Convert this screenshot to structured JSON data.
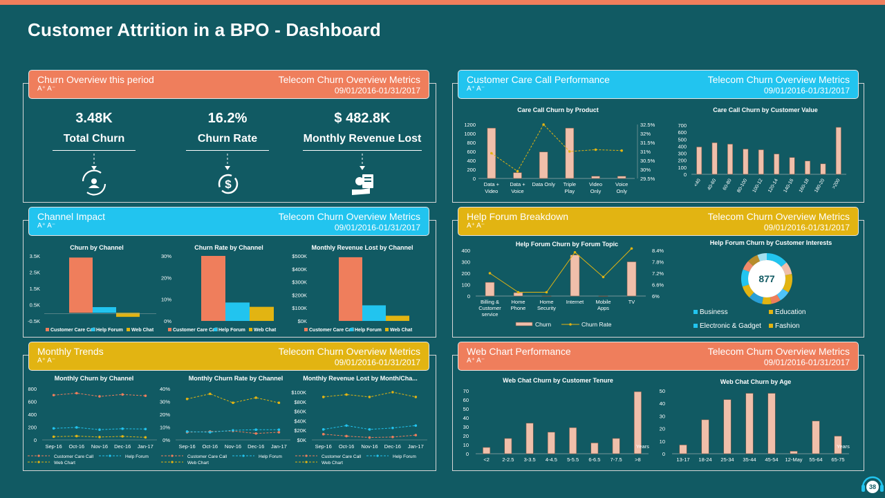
{
  "page": {
    "title": "Customer Attrition in a BPO - Dashboard",
    "number": "38"
  },
  "colors": {
    "orange": "#ef7e5c",
    "blue": "#22c4ef",
    "gold": "#e2b412",
    "bg": "#115a63",
    "bar": "#f0bfaa"
  },
  "font_icons": "A⁺ A⁻",
  "panels": {
    "churn_overview": {
      "title": "Churn Overview this period",
      "subtitle": "Telecom Churn Overview Metrics",
      "date": "09/01/2016-01/31/2017"
    },
    "care_call": {
      "title": "Customer Care Call Performance",
      "subtitle": "Telecom Churn Overview Metrics",
      "date": "09/01/2016-01/31/2017"
    },
    "channel_impact": {
      "title": "Channel Impact",
      "subtitle": "Telecom Churn Overview Metrics",
      "date": "09/01/2016-01/31/2017"
    },
    "help_forum": {
      "title": "Help Forum Breakdown",
      "subtitle": "Telecom Churn Overview Metrics",
      "date": "09/01/2016-01/31/2017"
    },
    "monthly_trends": {
      "title": "Monthly Trends",
      "subtitle": "Telecom Churn Overview Metrics",
      "date": "09/01/2016-01/31/2017"
    },
    "web_chart": {
      "title": "Web Chart Performance",
      "subtitle": "Telecom Churn Overview Metrics",
      "date": "09/01/2016-01/31/2017"
    }
  },
  "kpis": [
    {
      "value": "3.48K",
      "label": "Total Churn",
      "icon": "user-refresh-icon"
    },
    {
      "value": "16.2%",
      "label": "Churn Rate",
      "icon": "dollar-cycle-icon"
    },
    {
      "value": "$ 482.8K",
      "label": "Monthly Revenue Lost",
      "icon": "hand-money-icon"
    }
  ],
  "chart_data": [
    {
      "id": "care_product",
      "type": "bar+line",
      "title": "Care Call Churn by Product",
      "categories": [
        "Data + Video",
        "Data + Voice",
        "Data Only",
        "Triple Play",
        "Video Only",
        "Voice Only"
      ],
      "series": [
        {
          "name": "Churn",
          "values": [
            1120,
            130,
            590,
            1120,
            50,
            50
          ]
        },
        {
          "name": "Churn Rate",
          "values": [
            30.9,
            29.9,
            32.5,
            31.0,
            31.1,
            31.05
          ]
        }
      ],
      "yticks": [
        "0",
        "200",
        "400",
        "600",
        "800",
        "1000",
        "1200"
      ],
      "ylim": [
        0,
        1200
      ],
      "y2ticks": [
        "29.5%",
        "30%",
        "30.5%",
        "31%",
        "31.5%",
        "32%",
        "32.5%"
      ],
      "y2lim": [
        29.5,
        32.5
      ]
    },
    {
      "id": "care_value",
      "type": "bar",
      "title": "Care Call Churn by Customer Value",
      "categories": [
        "<40",
        "40-60",
        "60-80",
        "80-100",
        "100-12",
        "120-14",
        "140-16",
        "160-18",
        "180-20",
        ">200"
      ],
      "values": [
        390,
        450,
        430,
        360,
        350,
        290,
        240,
        190,
        150,
        670
      ],
      "yticks": [
        "0",
        "100",
        "200",
        "300",
        "400",
        "500",
        "600",
        "700"
      ],
      "ylim": [
        0,
        700
      ]
    },
    {
      "id": "ch_churn",
      "type": "bar",
      "title": "Churn by Channel",
      "categories": [
        "Customer Care Call",
        "Help Forum",
        "Web Chat"
      ],
      "values": [
        3.4,
        0.35,
        -0.25
      ],
      "yticks": [
        "-0.5K",
        "0.5K",
        "1.5K",
        "2.5K",
        "3.5K"
      ],
      "ylim": [
        -0.5,
        3.5
      ],
      "legend": [
        "Customer Care Call",
        "Help Forum",
        "Web Chat"
      ]
    },
    {
      "id": "ch_rate",
      "type": "bar",
      "title": "Churn Rate by Channel",
      "categories": [
        "Customer Care Call",
        "Help Forum",
        "Web Chat"
      ],
      "values": [
        30,
        8.5,
        6.5
      ],
      "yticks": [
        "0%",
        "10%",
        "20%",
        "30%"
      ],
      "ylim": [
        0,
        30
      ],
      "legend": [
        "Customer Care Call",
        "Help Forum",
        "Web Chat"
      ]
    },
    {
      "id": "ch_rev",
      "type": "bar",
      "title": "Monthly Revenue Lost by Channel",
      "categories": [
        "Customer Care Call",
        "Help Forum",
        "Web Chat"
      ],
      "values": [
        490,
        120,
        40
      ],
      "yticks": [
        "$0K",
        "$100K",
        "$200K",
        "$300K",
        "$400K",
        "$500K"
      ],
      "ylim": [
        0,
        500
      ],
      "legend": [
        "Customer Care Call",
        "Help Forum",
        "Web Chat"
      ]
    },
    {
      "id": "hf_topic",
      "type": "bar+line",
      "title": "Help Forum Churn by Forum Topic",
      "categories": [
        "Billing & Customer service",
        "Home Phone",
        "Home Security",
        "Internet",
        "Mobile Apps",
        "TV"
      ],
      "series": [
        {
          "name": "Churn",
          "values": [
            120,
            30,
            0,
            360,
            0,
            300
          ]
        },
        {
          "name": "Churn Rate",
          "values": [
            7.2,
            6.2,
            6.2,
            8.3,
            7.0,
            8.5
          ]
        }
      ],
      "yticks": [
        "0",
        "100",
        "200",
        "300",
        "400"
      ],
      "ylim": [
        0,
        400
      ],
      "y2ticks": [
        "6%",
        "6.6%",
        "7.2%",
        "7.8%",
        "8.4%"
      ],
      "y2lim": [
        6.0,
        8.4
      ],
      "legend": [
        "Churn",
        "Churn Rate"
      ]
    },
    {
      "id": "hf_interest",
      "type": "donut",
      "title": "Help Forum Churn by Customer Interests",
      "center": "877",
      "legend": [
        "Business",
        "Education",
        "Electronic & Gadget",
        "Fashion"
      ]
    },
    {
      "id": "mt_churn",
      "type": "line",
      "title": "Monthly Churn by Channel",
      "categories": [
        "Sep-16",
        "Oct-16",
        "Nov-16",
        "Dec-16",
        "Jan-17"
      ],
      "series": [
        {
          "name": "Customer Care Call",
          "values": [
            700,
            730,
            680,
            710,
            690
          ]
        },
        {
          "name": "Help Forum",
          "values": [
            180,
            195,
            160,
            175,
            170
          ]
        },
        {
          "name": "Web Chart",
          "values": [
            50,
            60,
            45,
            55,
            40
          ]
        }
      ],
      "yticks": [
        "0",
        "200",
        "400",
        "600",
        "800"
      ],
      "ylim": [
        0,
        800
      ]
    },
    {
      "id": "mt_rate",
      "type": "line",
      "title": "Monthly Churn Rate by Channel",
      "categories": [
        "Sep-16",
        "Oct-16",
        "Nov-16",
        "Dec-16",
        "Jan-17"
      ],
      "series": [
        {
          "name": "Customer Care Call",
          "values": [
            6,
            6.5,
            7,
            5,
            6
          ]
        },
        {
          "name": "Help Forum",
          "values": [
            6.5,
            6,
            7.5,
            8,
            8
          ]
        },
        {
          "name": "Web Chart",
          "values": [
            32,
            36,
            29,
            33,
            29
          ]
        }
      ],
      "yticks": [
        "0%",
        "10%",
        "20%",
        "30%",
        "40%"
      ],
      "ylim": [
        0,
        40
      ]
    },
    {
      "id": "mt_rev",
      "type": "line",
      "title": "Monthly Revenue Lost by Month/Cha...",
      "categories": [
        "Sep-16",
        "Oct-16",
        "Nov-16",
        "Dec-16",
        "Jan-17"
      ],
      "series": [
        {
          "name": "Customer Care Call",
          "values": [
            12,
            8,
            5,
            6,
            10
          ]
        },
        {
          "name": "Help Forum",
          "values": [
            22,
            30,
            22,
            25,
            30
          ]
        },
        {
          "name": "Web Chart",
          "values": [
            90,
            95,
            90,
            100,
            90
          ]
        }
      ],
      "yticks": [
        "$0K",
        "$20K",
        "$40K",
        "$60K",
        "$80K",
        "$100K"
      ],
      "ylim": [
        0,
        100
      ]
    },
    {
      "id": "wc_tenure",
      "type": "bar",
      "title": "Web Chat Churn by Customer Tenure",
      "categories": [
        "<2",
        "2-2.5",
        "3-3.5",
        "4-4.5",
        "5-5.5",
        "6-6.5",
        "7-7.5",
        ">8"
      ],
      "values": [
        7,
        17,
        34,
        24,
        29,
        12,
        17,
        69
      ],
      "yticks": [
        "0",
        "10",
        "20",
        "30",
        "40",
        "50",
        "60",
        "70"
      ],
      "ylim": [
        0,
        70
      ],
      "xunit": "Years"
    },
    {
      "id": "wc_age",
      "type": "bar",
      "title": "Web Chat Churn by Age",
      "categories": [
        "13-17",
        "18-24",
        "25-34",
        "35-44",
        "45-54",
        "12-May",
        "55-64",
        "65-75"
      ],
      "values": [
        7,
        27,
        43,
        48,
        48,
        2,
        26,
        14
      ],
      "yticks": [
        "0",
        "10",
        "20",
        "30",
        "40",
        "50"
      ],
      "ylim": [
        0,
        50
      ],
      "xunit": "Years"
    }
  ],
  "legends": {
    "trend": [
      "Customer Care Call",
      "Help Forum",
      "Web Chart"
    ]
  }
}
